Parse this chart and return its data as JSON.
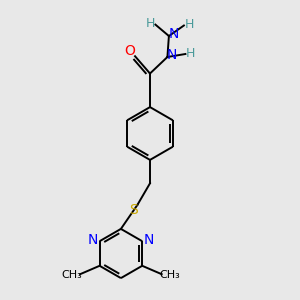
{
  "bg_color": "#e8e8e8",
  "atom_colors": {
    "C": "#000000",
    "N": "#0000ff",
    "O": "#ff0000",
    "S": "#ccaa00",
    "H": "#4a9a9a"
  },
  "bond_color": "#000000",
  "bond_lw": 1.4
}
